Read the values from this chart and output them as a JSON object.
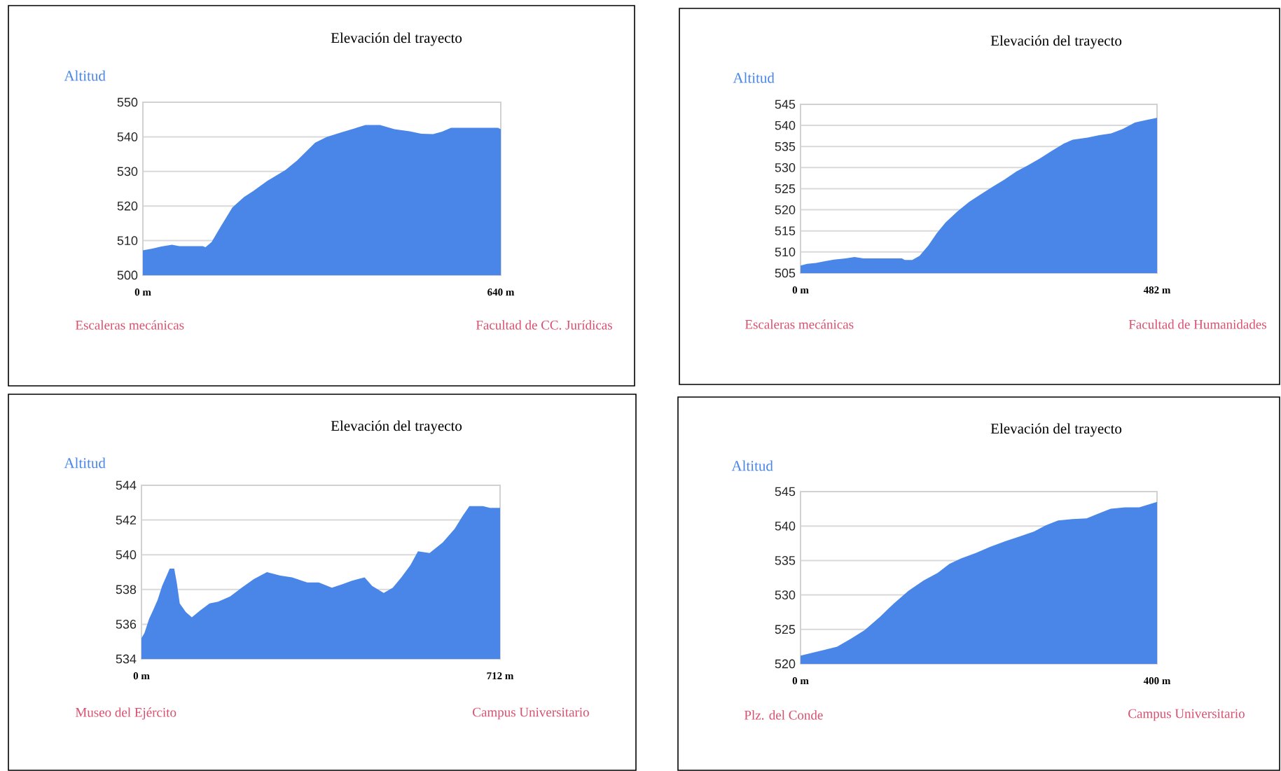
{
  "chart_data": [
    {
      "type": "area",
      "title": "Elevación del trayecto",
      "ylabel": "Altitud",
      "annotations": [
        "Escaleras mecánicas",
        "Facultad de CC. Jurídicas"
      ],
      "xlim": [
        0,
        640
      ],
      "xticks": [
        {
          "value": 0,
          "label": "0 m"
        },
        {
          "value": 640,
          "label": "640 m"
        }
      ],
      "ylim": [
        500,
        550
      ],
      "yticks": [
        500,
        510,
        520,
        530,
        540,
        550
      ],
      "grid": "y",
      "x": [
        0,
        17,
        33,
        52,
        65,
        107,
        112,
        123,
        139,
        160,
        181,
        197,
        223,
        255,
        276,
        308,
        329,
        355,
        376,
        398,
        424,
        450,
        477,
        498,
        519,
        535,
        551,
        635,
        640
      ],
      "series": [
        {
          "color": "#4a86e8",
          "values": [
            507.2,
            507.7,
            508.3,
            508.8,
            508.4,
            508.4,
            508.1,
            509.6,
            514,
            519.6,
            522.6,
            524.3,
            527.3,
            530.4,
            533.2,
            538.3,
            540,
            541.3,
            542.3,
            543.4,
            543.4,
            542.2,
            541.6,
            540.9,
            540.8,
            541.5,
            542.6,
            542.6,
            542.2
          ]
        }
      ]
    },
    {
      "type": "area",
      "title": "Elevación del trayecto",
      "ylabel": "Altitud",
      "annotations": [
        "Escaleras mecánicas",
        "Facultad de Humanidades"
      ],
      "xlim": [
        0,
        482
      ],
      "xticks": [
        {
          "value": 0,
          "label": "0 m"
        },
        {
          "value": 482,
          "label": "482 m"
        }
      ],
      "ylim": [
        505,
        545
      ],
      "yticks": [
        505,
        510,
        515,
        520,
        525,
        530,
        535,
        540,
        545
      ],
      "grid": "y",
      "x": [
        0,
        9,
        21,
        33,
        45,
        61,
        73,
        85,
        137,
        141,
        151,
        161,
        173,
        184,
        196,
        212,
        228,
        244,
        260,
        276,
        292,
        308,
        324,
        340,
        356,
        368,
        388,
        404,
        420,
        436,
        452,
        468,
        482
      ],
      "series": [
        {
          "color": "#4a86e8",
          "values": [
            506.8,
            507.2,
            507.4,
            507.8,
            508.2,
            508.5,
            508.8,
            508.5,
            508.5,
            508.1,
            508.1,
            509.1,
            511.6,
            514.4,
            517,
            519.6,
            521.9,
            523.7,
            525.5,
            527.2,
            529.1,
            530.6,
            532.2,
            534,
            535.7,
            536.6,
            537.1,
            537.7,
            538.1,
            539.2,
            540.7,
            541.3,
            541.8
          ]
        }
      ]
    },
    {
      "type": "area",
      "title": "Elevación del trayecto",
      "ylabel": "Altitud",
      "annotations": [
        "Museo del Ejército",
        "Campus Universitario"
      ],
      "xlim": [
        0,
        712
      ],
      "xticks": [
        {
          "value": 0,
          "label": "0 m"
        },
        {
          "value": 712,
          "label": "712 m"
        }
      ],
      "ylim": [
        534,
        544
      ],
      "yticks": [
        534,
        536,
        538,
        540,
        542,
        544
      ],
      "grid": "y",
      "x": [
        0,
        6,
        15,
        23,
        32,
        41,
        50,
        56,
        65,
        70,
        76,
        88,
        100,
        117,
        135,
        152,
        176,
        199,
        223,
        249,
        276,
        299,
        329,
        352,
        378,
        399,
        417,
        443,
        458,
        481,
        499,
        516,
        534,
        549,
        572,
        598,
        622,
        637,
        651,
        678,
        692,
        712
      ],
      "series": [
        {
          "color": "#4a86e8",
          "values": [
            535.2,
            535.5,
            536.3,
            536.8,
            537.4,
            538.2,
            538.8,
            539.2,
            539.2,
            538.4,
            537.2,
            536.7,
            536.4,
            536.8,
            537.2,
            537.3,
            537.6,
            538.1,
            538.6,
            539,
            538.8,
            538.7,
            538.4,
            538.4,
            538.1,
            538.3,
            538.5,
            538.7,
            538.2,
            537.8,
            538.1,
            538.7,
            539.4,
            540.2,
            540.1,
            540.7,
            541.5,
            542.2,
            542.8,
            542.8,
            542.7,
            542.7
          ]
        }
      ]
    },
    {
      "type": "area",
      "title": "Elevación del trayecto",
      "ylabel": "Altitud",
      "annotations": [
        "Plz. del Conde",
        "Campus Universitario"
      ],
      "xlim": [
        0,
        400
      ],
      "xticks": [
        {
          "value": 0,
          "label": "0 m"
        },
        {
          "value": 400,
          "label": "400 m"
        }
      ],
      "ylim": [
        520,
        545
      ],
      "yticks": [
        520,
        525,
        530,
        535,
        540,
        545
      ],
      "grid": "y",
      "x": [
        0,
        13,
        26,
        41,
        56,
        72,
        89,
        105,
        121,
        138,
        154,
        167,
        180,
        197,
        213,
        230,
        246,
        262,
        275,
        289,
        305,
        321,
        334,
        348,
        364,
        380,
        400
      ],
      "series": [
        {
          "color": "#4a86e8",
          "values": [
            521.2,
            521.6,
            522,
            522.5,
            523.6,
            524.9,
            526.8,
            528.8,
            530.6,
            532.1,
            533.2,
            534.5,
            535.3,
            536.1,
            537,
            537.8,
            538.5,
            539.2,
            540.1,
            540.8,
            541,
            541.1,
            541.8,
            542.5,
            542.7,
            542.7,
            543.5
          ]
        }
      ]
    }
  ]
}
